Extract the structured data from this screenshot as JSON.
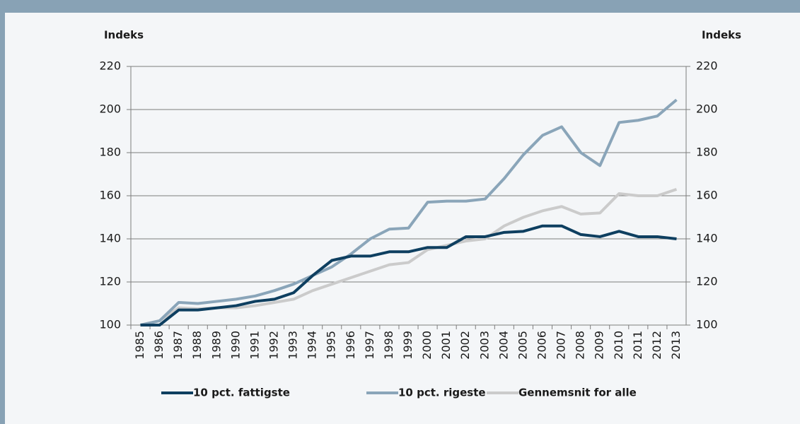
{
  "chart_data": {
    "type": "line",
    "y_label": "Indeks",
    "y2_label": "Indeks",
    "categories": [
      "1985",
      "1986",
      "1987",
      "1988",
      "1989",
      "1990",
      "1991",
      "1992",
      "1993",
      "1994",
      "1995",
      "1996",
      "1997",
      "1998",
      "1999",
      "2000",
      "2001",
      "2002",
      "2003",
      "2004",
      "2005",
      "2006",
      "2007",
      "2008",
      "2009",
      "2010",
      "2011",
      "2012",
      "2013"
    ],
    "series": [
      {
        "name": "10 pct. fattigste",
        "color": "#0e3f60",
        "values": [
          100,
          100,
          107,
          107,
          108,
          109,
          111,
          112,
          115,
          123,
          130,
          132,
          132,
          134,
          134,
          136,
          136,
          141,
          141,
          143,
          143.5,
          146,
          146,
          142,
          141,
          143.5,
          141,
          141,
          140
        ]
      },
      {
        "name": "10 pct. rigeste",
        "color": "#8aa5b9",
        "values": [
          100,
          102,
          110.5,
          110,
          111,
          112,
          113.5,
          116,
          119,
          123,
          127,
          133,
          140,
          144.5,
          145,
          157,
          157.5,
          157.5,
          158.5,
          168,
          179,
          188,
          192,
          180,
          174,
          194,
          195,
          197,
          204.5
        ]
      },
      {
        "name": "Gennemsnit for alle",
        "color": "#cbcbcb",
        "values": [
          100,
          102,
          108,
          107.5,
          108,
          108,
          109,
          110.5,
          112,
          116,
          119,
          122,
          125,
          128,
          129,
          135,
          137,
          139,
          140,
          146,
          150,
          153,
          155,
          151.5,
          152,
          161,
          160,
          160,
          163
        ]
      }
    ],
    "ylim": [
      100,
      220
    ],
    "yticks": [
      100,
      120,
      140,
      160,
      180,
      200,
      220
    ],
    "y2lim": [
      100,
      220
    ],
    "y2ticks": [
      100,
      120,
      140,
      160,
      180,
      200,
      220
    ],
    "grid": true,
    "legend": "bottom"
  }
}
